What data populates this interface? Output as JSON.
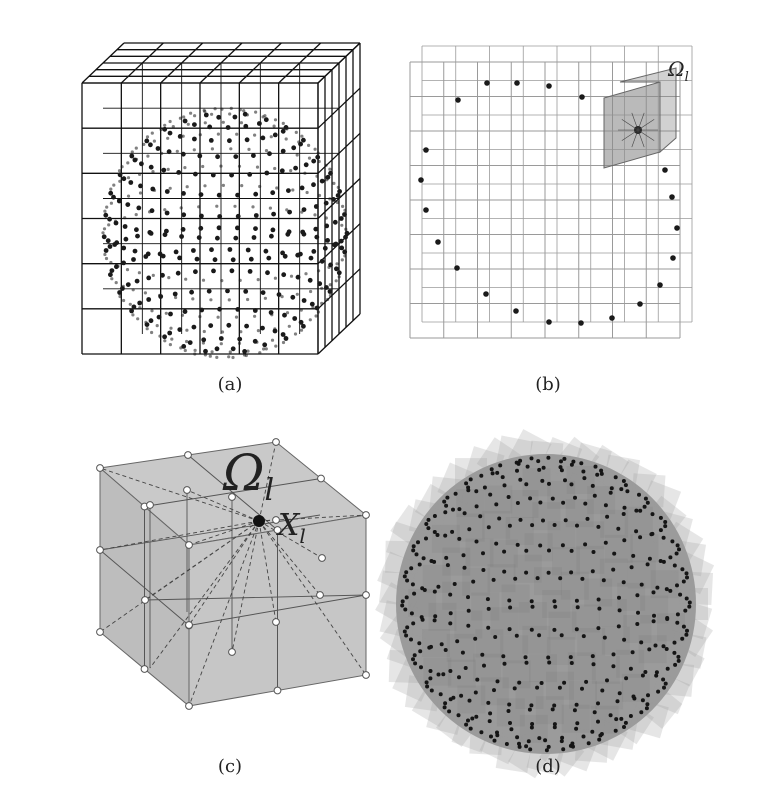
{
  "panels": {
    "a": {
      "caption": "(a)"
    },
    "b": {
      "caption": "(b)",
      "region_label": "Ω",
      "region_subscript": "l"
    },
    "c": {
      "caption": "(c)",
      "region_label": "Ω",
      "region_subscript": "l",
      "point_label": "X",
      "point_subscript": "l"
    },
    "d": {
      "caption": "(d)"
    }
  },
  "colors": {
    "line": "#111111",
    "light_line": "#9a9a9a",
    "shade": "#8c8c8c",
    "face": "#c9c9c9",
    "dot": "#1a1a1a"
  }
}
